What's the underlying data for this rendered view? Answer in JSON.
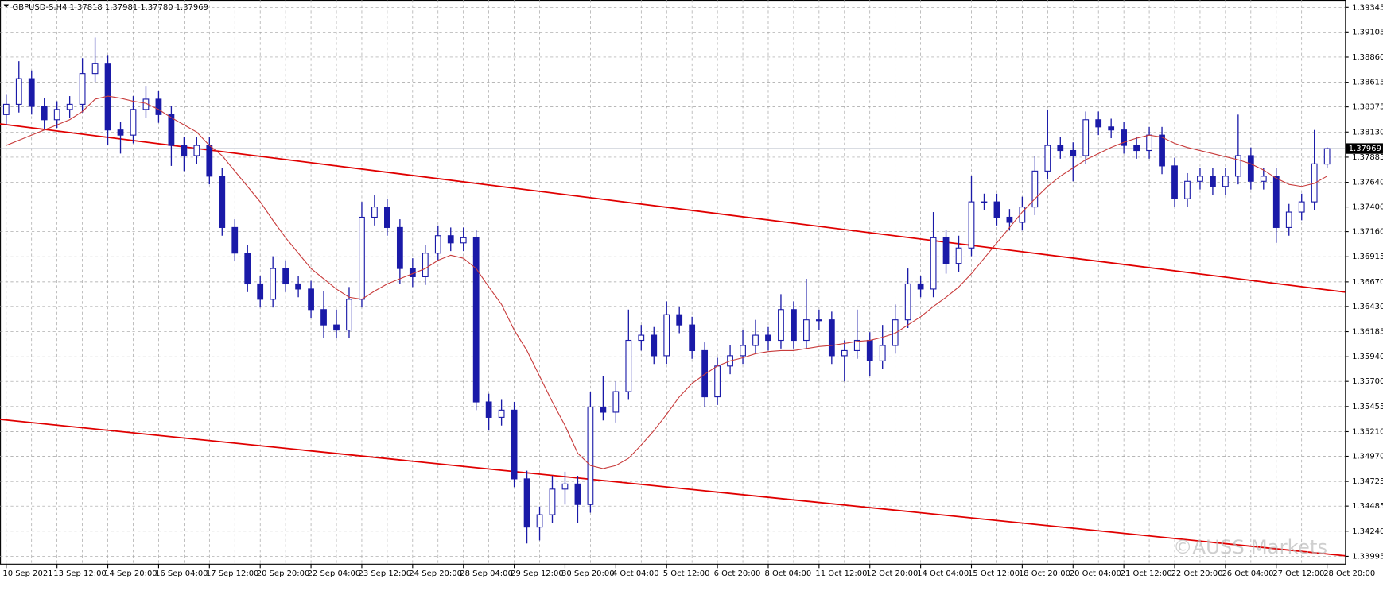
{
  "chart_data": {
    "type": "candlestick",
    "title": "GBPUSD-S,H4 1.37818 1.37981 1.37780 1.37969",
    "watermark": "©AUSS Markets",
    "categories": [
      "10 Sep 2021",
      null,
      null,
      null,
      "13 Sep 12:00",
      null,
      null,
      null,
      "14 Sep 20:00",
      null,
      null,
      null,
      "16 Sep 04:00",
      null,
      null,
      null,
      "17 Sep 12:00",
      null,
      null,
      null,
      "20 Sep 20:00",
      null,
      null,
      null,
      "22 Sep 04:00",
      null,
      null,
      null,
      "23 Sep 12:00",
      null,
      null,
      null,
      "24 Sep 20:00",
      null,
      null,
      null,
      "28 Sep 04:00",
      null,
      null,
      null,
      "29 Sep 12:00",
      null,
      null,
      null,
      "30 Sep 20:00",
      null,
      null,
      null,
      "4 Oct 04:00",
      null,
      null,
      null,
      "5 Oct 12:00",
      null,
      null,
      null,
      "6 Oct 20:00",
      null,
      null,
      null,
      "8 Oct 04:00",
      null,
      null,
      null,
      "11 Oct 12:00",
      null,
      null,
      null,
      "12 Oct 20:00",
      null,
      null,
      null,
      "14 Oct 04:00",
      null,
      null,
      null,
      "15 Oct 12:00",
      null,
      null,
      null,
      "18 Oct 20:00",
      null,
      null,
      null,
      "20 Oct 04:00",
      null,
      null,
      null,
      "21 Oct 12:00",
      null,
      null,
      null,
      "22 Oct 20:00",
      null,
      null,
      null,
      "26 Oct 04:00",
      null,
      null,
      null,
      "27 Oct 12:00",
      null,
      null,
      null,
      "28 Oct 20:00"
    ],
    "ohlc": [
      [
        1.383,
        1.385,
        1.382,
        1.384
      ],
      [
        1.384,
        1.3882,
        1.3832,
        1.3865
      ],
      [
        1.3865,
        1.3873,
        1.383,
        1.3838
      ],
      [
        1.3838,
        1.3846,
        1.3815,
        1.3825
      ],
      [
        1.3825,
        1.3843,
        1.3817,
        1.3835
      ],
      [
        1.3835,
        1.3848,
        1.3827,
        1.384
      ],
      [
        1.384,
        1.3885,
        1.3832,
        1.387
      ],
      [
        1.387,
        1.3905,
        1.3862,
        1.388
      ],
      [
        1.388,
        1.3888,
        1.38,
        1.3815
      ],
      [
        1.3815,
        1.3823,
        1.3792,
        1.381
      ],
      [
        1.381,
        1.3848,
        1.3802,
        1.3835
      ],
      [
        1.3835,
        1.3858,
        1.3827,
        1.3845
      ],
      [
        1.3845,
        1.3853,
        1.3822,
        1.383
      ],
      [
        1.383,
        1.3838,
        1.378,
        1.38
      ],
      [
        1.38,
        1.3808,
        1.3775,
        1.379
      ],
      [
        1.379,
        1.3808,
        1.3782,
        1.38
      ],
      [
        1.38,
        1.3808,
        1.3762,
        1.377
      ],
      [
        1.377,
        1.3778,
        1.3712,
        1.372
      ],
      [
        1.372,
        1.3728,
        1.3687,
        1.3695
      ],
      [
        1.3695,
        1.3703,
        1.3657,
        1.3665
      ],
      [
        1.3665,
        1.3673,
        1.3642,
        1.365
      ],
      [
        1.365,
        1.3692,
        1.3642,
        1.368
      ],
      [
        1.368,
        1.3688,
        1.3657,
        1.3665
      ],
      [
        1.3665,
        1.3673,
        1.3652,
        1.366
      ],
      [
        1.366,
        1.3668,
        1.3632,
        1.364
      ],
      [
        1.364,
        1.3658,
        1.3612,
        1.3625
      ],
      [
        1.3625,
        1.364,
        1.3612,
        1.362
      ],
      [
        1.362,
        1.3662,
        1.3612,
        1.365
      ],
      [
        1.365,
        1.3745,
        1.3642,
        1.373
      ],
      [
        1.373,
        1.3752,
        1.3722,
        1.374
      ],
      [
        1.374,
        1.3748,
        1.3712,
        1.372
      ],
      [
        1.372,
        1.3728,
        1.3665,
        1.368
      ],
      [
        1.368,
        1.369,
        1.3662,
        1.3672
      ],
      [
        1.3672,
        1.3703,
        1.3664,
        1.3695
      ],
      [
        1.3695,
        1.3722,
        1.3687,
        1.3712
      ],
      [
        1.3712,
        1.372,
        1.3697,
        1.3705
      ],
      [
        1.3705,
        1.372,
        1.3697,
        1.371
      ],
      [
        1.371,
        1.3718,
        1.3542,
        1.355
      ],
      [
        1.355,
        1.3558,
        1.3522,
        1.3535
      ],
      [
        1.3535,
        1.3552,
        1.3527,
        1.3542
      ],
      [
        1.3542,
        1.355,
        1.3467,
        1.3475
      ],
      [
        1.3475,
        1.3483,
        1.3412,
        1.3428
      ],
      [
        1.3428,
        1.3448,
        1.3415,
        1.344
      ],
      [
        1.344,
        1.3478,
        1.3432,
        1.3465
      ],
      [
        1.3465,
        1.3482,
        1.345,
        1.347
      ],
      [
        1.347,
        1.3478,
        1.3432,
        1.345
      ],
      [
        1.345,
        1.356,
        1.3442,
        1.3545
      ],
      [
        1.3545,
        1.3575,
        1.3532,
        1.354
      ],
      [
        1.354,
        1.357,
        1.353,
        1.356
      ],
      [
        1.356,
        1.364,
        1.3552,
        1.361
      ],
      [
        1.361,
        1.3625,
        1.36,
        1.3615
      ],
      [
        1.3615,
        1.3623,
        1.3587,
        1.3595
      ],
      [
        1.3595,
        1.3648,
        1.3587,
        1.3635
      ],
      [
        1.3635,
        1.3643,
        1.3617,
        1.3625
      ],
      [
        1.3625,
        1.3633,
        1.3592,
        1.36
      ],
      [
        1.36,
        1.3608,
        1.3545,
        1.3555
      ],
      [
        1.3555,
        1.3593,
        1.3547,
        1.3585
      ],
      [
        1.3585,
        1.3605,
        1.3577,
        1.3595
      ],
      [
        1.3595,
        1.362,
        1.3587,
        1.3605
      ],
      [
        1.3605,
        1.363,
        1.3597,
        1.3615
      ],
      [
        1.3615,
        1.3623,
        1.36,
        1.361
      ],
      [
        1.361,
        1.3655,
        1.3602,
        1.364
      ],
      [
        1.364,
        1.3648,
        1.3602,
        1.361
      ],
      [
        1.361,
        1.367,
        1.3602,
        1.363
      ],
      [
        1.363,
        1.364,
        1.362,
        1.363
      ],
      [
        1.363,
        1.3638,
        1.3587,
        1.3595
      ],
      [
        1.3595,
        1.361,
        1.357,
        1.36
      ],
      [
        1.36,
        1.364,
        1.3592,
        1.361
      ],
      [
        1.361,
        1.3618,
        1.3575,
        1.359
      ],
      [
        1.359,
        1.3625,
        1.3582,
        1.3605
      ],
      [
        1.3605,
        1.3645,
        1.3597,
        1.363
      ],
      [
        1.363,
        1.368,
        1.3622,
        1.3665
      ],
      [
        1.3665,
        1.3673,
        1.3652,
        1.366
      ],
      [
        1.366,
        1.3735,
        1.3652,
        1.371
      ],
      [
        1.371,
        1.3718,
        1.3675,
        1.3685
      ],
      [
        1.3685,
        1.3712,
        1.3677,
        1.37
      ],
      [
        1.37,
        1.377,
        1.3692,
        1.3745
      ],
      [
        1.3745,
        1.3753,
        1.3737,
        1.3745
      ],
      [
        1.3745,
        1.3753,
        1.3722,
        1.373
      ],
      [
        1.373,
        1.3738,
        1.3717,
        1.3725
      ],
      [
        1.3725,
        1.375,
        1.3717,
        1.374
      ],
      [
        1.374,
        1.379,
        1.3732,
        1.3775
      ],
      [
        1.3775,
        1.3835,
        1.3767,
        1.38
      ],
      [
        1.38,
        1.3808,
        1.3787,
        1.3795
      ],
      [
        1.3795,
        1.3803,
        1.3765,
        1.379
      ],
      [
        1.379,
        1.3833,
        1.3782,
        1.3825
      ],
      [
        1.3825,
        1.3833,
        1.381,
        1.3818
      ],
      [
        1.3818,
        1.3826,
        1.3807,
        1.3815
      ],
      [
        1.3815,
        1.3823,
        1.3792,
        1.38
      ],
      [
        1.38,
        1.3808,
        1.3787,
        1.3795
      ],
      [
        1.3795,
        1.3818,
        1.3787,
        1.381
      ],
      [
        1.381,
        1.3818,
        1.3772,
        1.378
      ],
      [
        1.378,
        1.3788,
        1.374,
        1.3748
      ],
      [
        1.3748,
        1.3773,
        1.374,
        1.3765
      ],
      [
        1.3765,
        1.3778,
        1.3757,
        1.377
      ],
      [
        1.377,
        1.3778,
        1.3752,
        1.376
      ],
      [
        1.376,
        1.3778,
        1.3752,
        1.377
      ],
      [
        1.377,
        1.383,
        1.3762,
        1.379
      ],
      [
        1.379,
        1.3798,
        1.3757,
        1.3765
      ],
      [
        1.3765,
        1.3778,
        1.3757,
        1.377
      ],
      [
        1.377,
        1.3778,
        1.3705,
        1.372
      ],
      [
        1.372,
        1.3743,
        1.3712,
        1.3735
      ],
      [
        1.3735,
        1.3753,
        1.3727,
        1.3745
      ],
      [
        1.3745,
        1.3815,
        1.3737,
        1.3782
      ],
      [
        1.37818,
        1.37981,
        1.3778,
        1.37969
      ]
    ],
    "ma": {
      "color": "#c83c3c",
      "values": [
        1.38,
        1.3805,
        1.381,
        1.3815,
        1.382,
        1.3825,
        1.3833,
        1.3845,
        1.3848,
        1.3846,
        1.3843,
        1.3841,
        1.3835,
        1.3827,
        1.382,
        1.3813,
        1.38,
        1.379,
        1.3775,
        1.376,
        1.3745,
        1.3727,
        1.371,
        1.3695,
        1.368,
        1.367,
        1.366,
        1.3652,
        1.365,
        1.3658,
        1.3665,
        1.367,
        1.3675,
        1.368,
        1.3688,
        1.3693,
        1.369,
        1.368,
        1.3662,
        1.3645,
        1.362,
        1.36,
        1.3575,
        1.355,
        1.3527,
        1.35,
        1.3488,
        1.3485,
        1.3488,
        1.3495,
        1.3508,
        1.3522,
        1.3538,
        1.3555,
        1.3568,
        1.3577,
        1.3585,
        1.359,
        1.3593,
        1.3597,
        1.3599,
        1.36,
        1.36,
        1.3602,
        1.3604,
        1.3605,
        1.3607,
        1.3609,
        1.361,
        1.3613,
        1.3617,
        1.3625,
        1.3633,
        1.3643,
        1.3652,
        1.3662,
        1.3675,
        1.369,
        1.3705,
        1.372,
        1.3735,
        1.3748,
        1.376,
        1.377,
        1.3778,
        1.3786,
        1.3792,
        1.3798,
        1.3803,
        1.3807,
        1.381,
        1.3808,
        1.3802,
        1.3798,
        1.3795,
        1.3792,
        1.3789,
        1.3786,
        1.3782,
        1.3776,
        1.3768,
        1.3762,
        1.376,
        1.3763,
        1.377
      ]
    },
    "trendlines": [
      {
        "start": 1.3821,
        "end": 1.3657,
        "color": "#e00000"
      },
      {
        "start": 1.3533,
        "end": 1.34,
        "color": "#e00000"
      }
    ],
    "last_price": 1.37969,
    "candle_color": "#1a1aa8",
    "up_fill": "#ffffff",
    "ylim": [
      1.3394,
      1.394
    ],
    "yticks": [
      1.39345,
      1.39105,
      {
        "value": 1.3886,
        "label": "1.38860"
      },
      1.38615,
      1.38375,
      {
        "value": 1.3813,
        "label": "1.38130"
      },
      1.37885,
      {
        "value": 1.3764,
        "label": "1.37640"
      },
      {
        "value": 1.374,
        "label": "1.37400"
      },
      {
        "value": 1.3716,
        "label": "1.37160"
      },
      1.36915,
      {
        "value": 1.3667,
        "label": "1.36670"
      },
      {
        "value": 1.3643,
        "label": "1.36430"
      },
      1.36185,
      {
        "value": 1.3594,
        "label": "1.35940"
      },
      {
        "value": 1.357,
        "label": "1.35700"
      },
      1.35455,
      {
        "value": 1.3521,
        "label": "1.35210"
      },
      {
        "value": 1.3497,
        "label": "1.34970"
      },
      1.34725,
      1.34485,
      {
        "value": 1.3424,
        "label": "1.34240"
      },
      1.33995
    ],
    "grid": true
  }
}
